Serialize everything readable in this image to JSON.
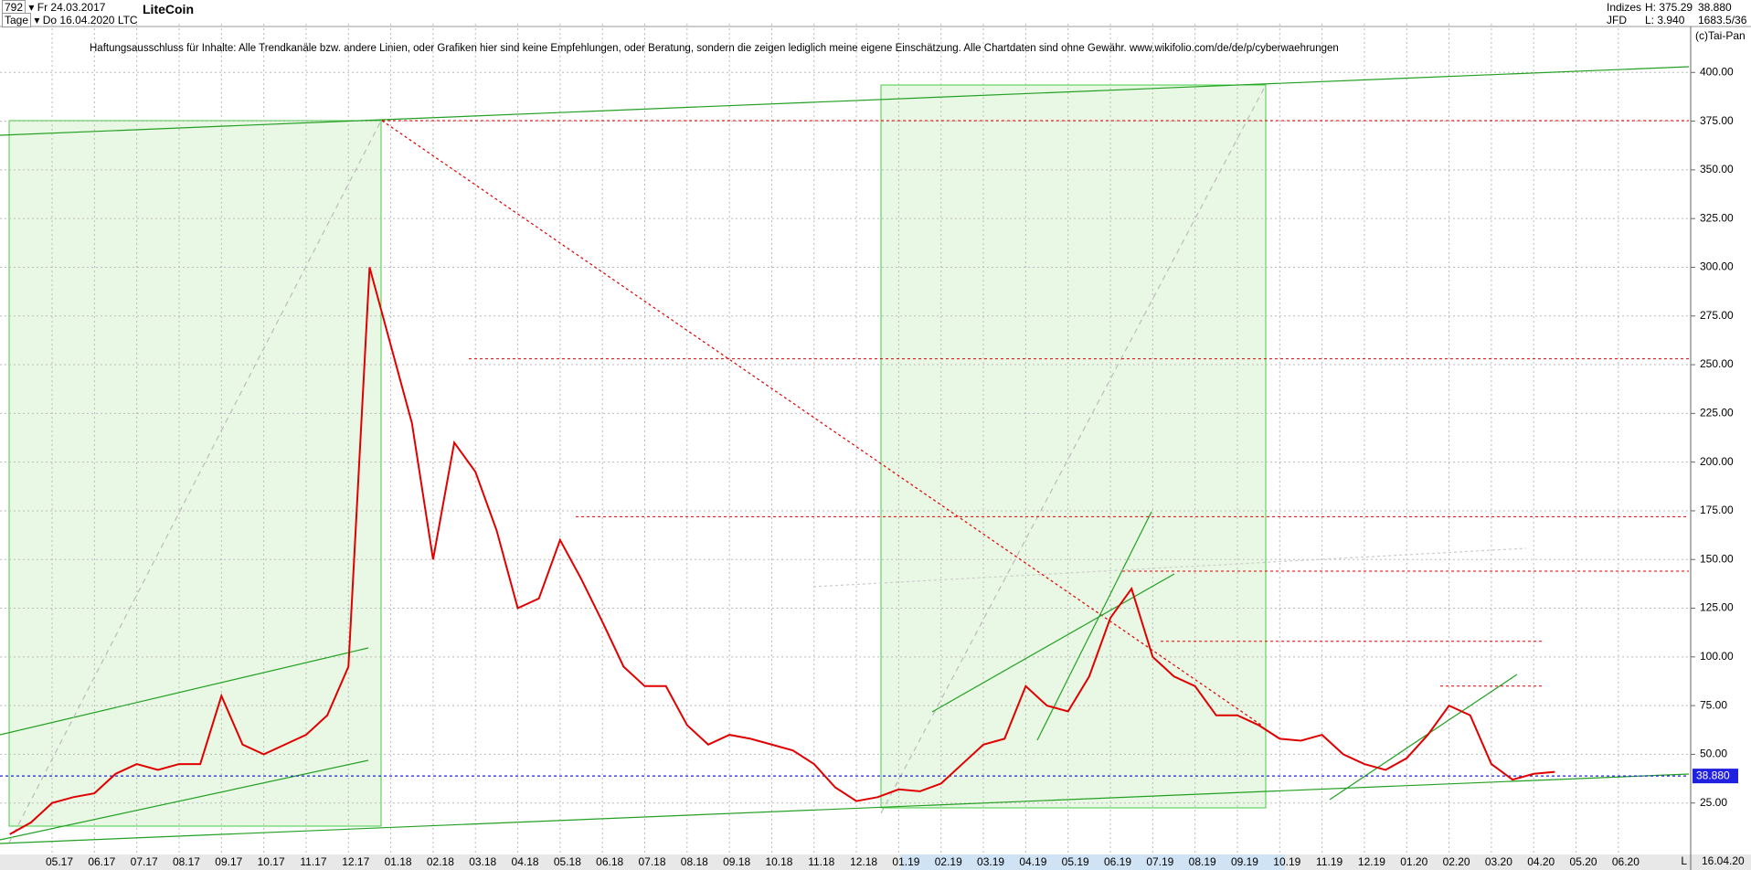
{
  "header": {
    "count": "792",
    "start_date": "Fr 24.03.2017",
    "period": "Tage",
    "end_date": "Do 16.04.2020",
    "symbol": "LTC",
    "name": "LiteCoin",
    "group": "Indizes",
    "source": "JFD",
    "high": "H: 375.29",
    "low": "L: 3.940",
    "last": "38.880",
    "change": "1683.5/36",
    "copyright": "(c)Tai-Pan",
    "disclaimer": "Haftungsausschluss für Inhalte: Alle Trendkanäle bzw. andere Linien, oder Grafiken hier sind keine Empfehlungen, oder Beratung, sondern die zeigen lediglich meine eigene Einschätzung. Alle Chartdaten sind ohne Gewähr.  www.wikifolio.com/de/de/p/cyberwaehrungen",
    "axis_end_date": "16.04.20",
    "axis_marker": "L"
  },
  "chart_data": {
    "type": "line",
    "color": "#e00000",
    "grid": true,
    "categories": [
      null,
      null,
      "05.17",
      null,
      "06.17",
      null,
      "07.17",
      null,
      "08.17",
      null,
      "09.17",
      null,
      "10.17",
      null,
      "11.17",
      null,
      "12.17",
      null,
      "01.18",
      null,
      "02.18",
      null,
      "03.18",
      null,
      "04.18",
      null,
      "05.18",
      null,
      "06.18",
      null,
      "07.18",
      null,
      "08.18",
      null,
      "09.18",
      null,
      "10.18",
      null,
      "11.18",
      null,
      "12.18",
      null,
      "01.19",
      null,
      "02.19",
      null,
      "03.19",
      null,
      "04.19",
      null,
      "05.19",
      null,
      "06.19",
      null,
      "07.19",
      null,
      "08.19",
      null,
      "09.19",
      null,
      "10.19",
      null,
      "11.19",
      null,
      "12.19",
      null,
      "01.20",
      null,
      "02.20",
      null,
      "03.20",
      null,
      "04.20",
      null,
      "05.20",
      null,
      "06.20",
      null
    ],
    "values": [
      9,
      15,
      25,
      28,
      30,
      40,
      45,
      42,
      45,
      45,
      80,
      55,
      50,
      55,
      60,
      70,
      95,
      300,
      260,
      220,
      150,
      210,
      195,
      165,
      125,
      130,
      160,
      140,
      118,
      95,
      85,
      85,
      65,
      55,
      60,
      58,
      55,
      52,
      45,
      33,
      26,
      28,
      32,
      31,
      35,
      45,
      55,
      58,
      85,
      75,
      72,
      90,
      120,
      135,
      100,
      90,
      85,
      70,
      70,
      65,
      58,
      57,
      60,
      50,
      45,
      42,
      48,
      60,
      75,
      70,
      45,
      37,
      40,
      41,
      null,
      null,
      null,
      null
    ],
    "ylim": [
      0,
      425
    ],
    "yticks": [
      {
        "value": 25,
        "label": "25.00"
      },
      {
        "value": 50,
        "label": "50.00"
      },
      {
        "value": 75,
        "label": "75.00"
      },
      {
        "value": 100,
        "label": "100.00"
      },
      {
        "value": 125,
        "label": "125.00"
      },
      {
        "value": 150,
        "label": "150.00"
      },
      {
        "value": 175,
        "label": "175.00"
      },
      {
        "value": 200,
        "label": "200.00"
      },
      {
        "value": 225,
        "label": "225.00"
      },
      {
        "value": 250,
        "label": "250.00"
      },
      {
        "value": 275,
        "label": "275.00"
      },
      {
        "value": 300,
        "label": "300.00"
      },
      {
        "value": 325,
        "label": "325.00"
      },
      {
        "value": 350,
        "label": "350.00"
      },
      {
        "value": 375,
        "label": "375.00"
      },
      {
        "value": 400,
        "label": "400.00"
      }
    ],
    "levels": [
      375.29,
      253,
      172,
      144,
      108,
      85
    ],
    "level_color": "#e00000",
    "current_price": {
      "value": 38.88,
      "label": "38.880"
    },
    "current_color": "#2020e0"
  }
}
